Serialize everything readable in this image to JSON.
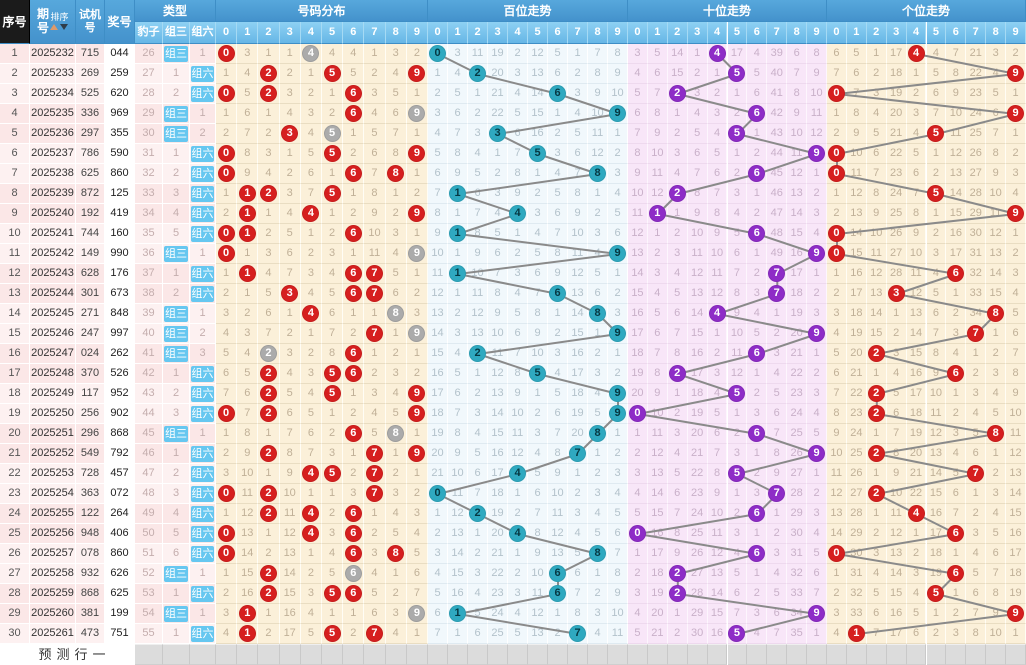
{
  "header": {
    "seq": "序号",
    "period": "期号",
    "sort": "排序",
    "test": "试机号",
    "prize": "奖号",
    "type": "类型",
    "leopard": "豹子",
    "group3": "组三",
    "group6": "组六",
    "distribution": "号码分布",
    "hundreds": "百位走势",
    "tens": "十位走势",
    "units": "个位走势",
    "digits": [
      "0",
      "1",
      "2",
      "3",
      "4",
      "5",
      "6",
      "7",
      "8",
      "9"
    ]
  },
  "footer": {
    "label": "预测行一"
  },
  "colors": {
    "header_blue": "#4e9ed6",
    "subheader_blue": "#7cc3ea",
    "seq_header_black": "#1b1b1b",
    "badge_blue": "#66c7f0",
    "circle_red": "#d61f1f",
    "circle_gray": "#ababab",
    "circle_teal": "#2fa9c0",
    "circle_purple": "#8e2cc7",
    "trend_line": "#8a8a8a",
    "distribution_bg": "#fbf0d9",
    "hundreds_bg": "#f1f8fc",
    "tens_bg": "#f8e6f8",
    "left_row_dark": "#fbe7e7",
    "left_row_light": "#fdf1f1"
  },
  "chart_data": {
    "type": "table",
    "leopard_miss_start": 26,
    "initial_miss": {
      "distribution": [
        0,
        3,
        1,
        1,
        0,
        4,
        4,
        1,
        3,
        2
      ],
      "hundreds": [
        0,
        3,
        11,
        19,
        2,
        12,
        5,
        1,
        7,
        8
      ],
      "tens": [
        3,
        5,
        14,
        1,
        0,
        17,
        4,
        39,
        6,
        8
      ],
      "units": [
        6,
        5,
        1,
        17,
        0,
        4,
        7,
        21,
        3,
        2
      ]
    },
    "rows": [
      {
        "seq": 1,
        "period": "2025232",
        "test": "715",
        "prize": "044",
        "type": "组三"
      },
      {
        "seq": 2,
        "period": "2025233",
        "test": "269",
        "prize": "259",
        "type": "组六"
      },
      {
        "seq": 3,
        "period": "2025234",
        "test": "525",
        "prize": "620",
        "type": "组六"
      },
      {
        "seq": 4,
        "period": "2025235",
        "test": "336",
        "prize": "969",
        "type": "组三"
      },
      {
        "seq": 5,
        "period": "2025236",
        "test": "297",
        "prize": "355",
        "type": "组三"
      },
      {
        "seq": 6,
        "period": "2025237",
        "test": "786",
        "prize": "590",
        "type": "组六"
      },
      {
        "seq": 7,
        "period": "2025238",
        "test": "625",
        "prize": "860",
        "type": "组六"
      },
      {
        "seq": 8,
        "period": "2025239",
        "test": "872",
        "prize": "125",
        "type": "组六"
      },
      {
        "seq": 9,
        "period": "2025240",
        "test": "192",
        "prize": "419",
        "type": "组六"
      },
      {
        "seq": 10,
        "period": "2025241",
        "test": "744",
        "prize": "160",
        "type": "组六"
      },
      {
        "seq": 11,
        "period": "2025242",
        "test": "149",
        "prize": "990",
        "type": "组三"
      },
      {
        "seq": 12,
        "period": "2025243",
        "test": "628",
        "prize": "176",
        "type": "组六"
      },
      {
        "seq": 13,
        "period": "2025244",
        "test": "301",
        "prize": "673",
        "type": "组六"
      },
      {
        "seq": 14,
        "period": "2025245",
        "test": "271",
        "prize": "848",
        "type": "组三"
      },
      {
        "seq": 15,
        "period": "2025246",
        "test": "247",
        "prize": "997",
        "type": "组三"
      },
      {
        "seq": 16,
        "period": "2025247",
        "test": "024",
        "prize": "262",
        "type": "组三"
      },
      {
        "seq": 17,
        "period": "2025248",
        "test": "370",
        "prize": "526",
        "type": "组六"
      },
      {
        "seq": 18,
        "period": "2025249",
        "test": "117",
        "prize": "952",
        "type": "组六"
      },
      {
        "seq": 19,
        "period": "2025250",
        "test": "256",
        "prize": "902",
        "type": "组六"
      },
      {
        "seq": 20,
        "period": "2025251",
        "test": "296",
        "prize": "868",
        "type": "组三"
      },
      {
        "seq": 21,
        "period": "2025252",
        "test": "549",
        "prize": "792",
        "type": "组六"
      },
      {
        "seq": 22,
        "period": "2025253",
        "test": "728",
        "prize": "457",
        "type": "组六"
      },
      {
        "seq": 23,
        "period": "2025254",
        "test": "363",
        "prize": "072",
        "type": "组六"
      },
      {
        "seq": 24,
        "period": "2025255",
        "test": "122",
        "prize": "264",
        "type": "组六"
      },
      {
        "seq": 25,
        "period": "2025256",
        "test": "948",
        "prize": "406",
        "type": "组六"
      },
      {
        "seq": 26,
        "period": "2025257",
        "test": "078",
        "prize": "860",
        "type": "组六"
      },
      {
        "seq": 27,
        "period": "2025258",
        "test": "932",
        "prize": "626",
        "type": "组三"
      },
      {
        "seq": 28,
        "period": "2025259",
        "test": "868",
        "prize": "625",
        "type": "组六"
      },
      {
        "seq": 29,
        "period": "2025260",
        "test": "381",
        "prize": "199",
        "type": "组三"
      },
      {
        "seq": 30,
        "period": "2025261",
        "test": "473",
        "prize": "751",
        "type": "组六"
      }
    ]
  }
}
